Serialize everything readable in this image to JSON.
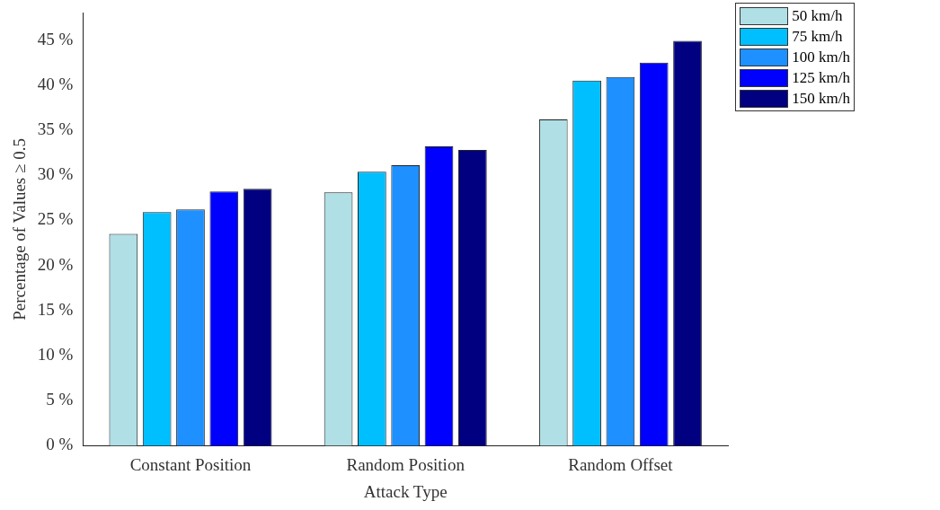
{
  "chart_data": {
    "type": "bar",
    "xlabel": "Attack Type",
    "ylabel": "Percentage of Values ≥ 0.5",
    "categories": [
      "Constant Position",
      "Random Position",
      "Random Offset"
    ],
    "series": [
      {
        "name": "50 km/h",
        "color": "#b0dfe5",
        "values": [
          23.5,
          28.1,
          36.2
        ]
      },
      {
        "name": "75 km/h",
        "color": "#00bfff",
        "values": [
          25.9,
          30.4,
          40.5
        ]
      },
      {
        "name": "100 km/h",
        "color": "#1e90ff",
        "values": [
          26.2,
          31.1,
          40.9
        ]
      },
      {
        "name": "125 km/h",
        "color": "#0000ff",
        "values": [
          28.2,
          33.2,
          42.5
        ]
      },
      {
        "name": "150 km/h",
        "color": "#000080",
        "values": [
          28.5,
          32.8,
          44.9
        ]
      }
    ],
    "ylim": [
      0,
      48
    ],
    "yticks": [
      {
        "value": 0,
        "label": "0 %"
      },
      {
        "value": 5,
        "label": "5 %"
      },
      {
        "value": 10,
        "label": "10 %"
      },
      {
        "value": 15,
        "label": "15 %"
      },
      {
        "value": 20,
        "label": "20 %"
      },
      {
        "value": 25,
        "label": "25 %"
      },
      {
        "value": 30,
        "label": "30 %"
      },
      {
        "value": 35,
        "label": "35 %"
      },
      {
        "value": 40,
        "label": "40 %"
      },
      {
        "value": 45,
        "label": "45 %"
      }
    ],
    "grid": false,
    "legend": "top right"
  }
}
